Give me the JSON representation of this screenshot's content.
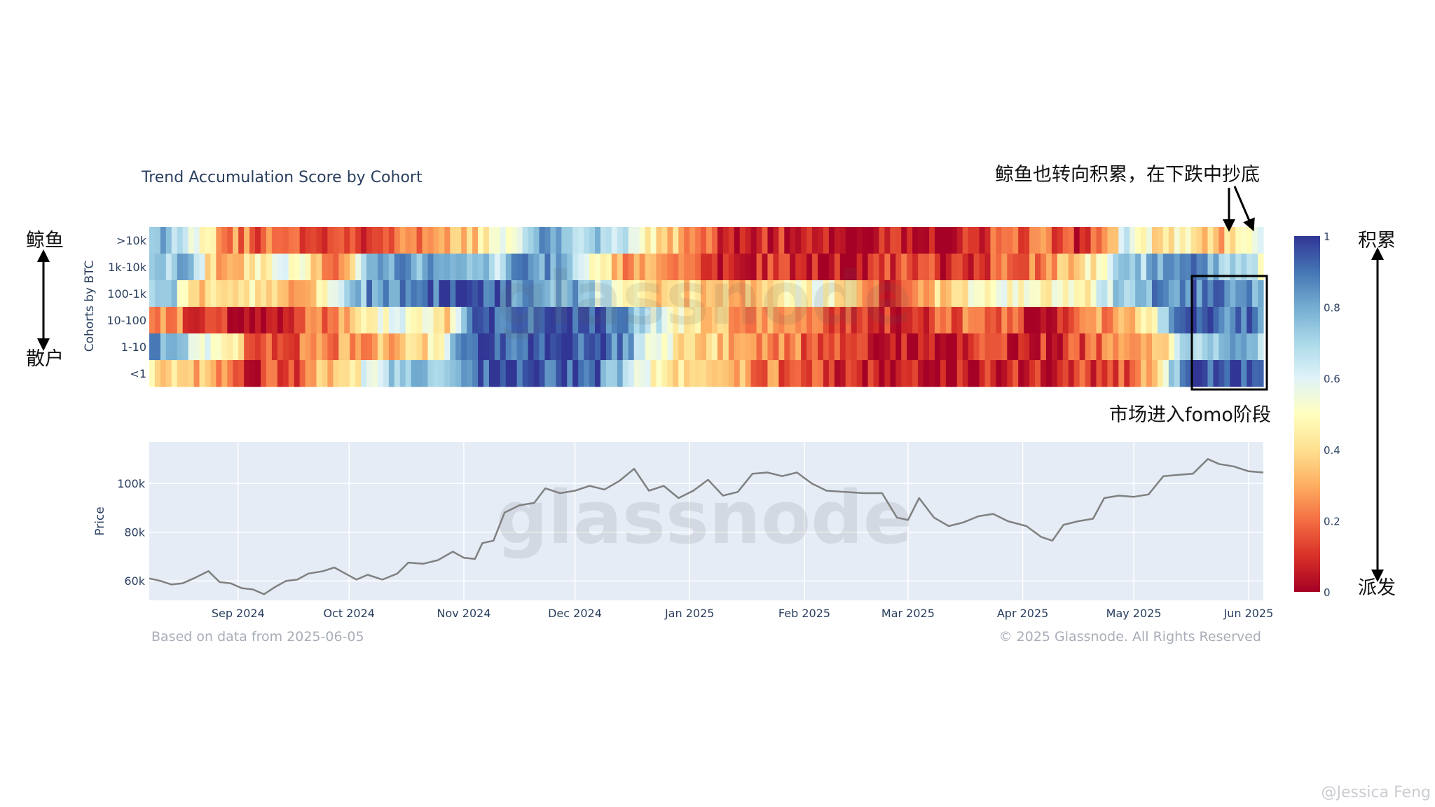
{
  "chart_data": {
    "type": "heatmap",
    "title": "Trend Accumulation Score by Cohort",
    "heatmap": {
      "ylabel": "Cohorts by BTC",
      "cohorts": [
        ">10k",
        "1k-10k",
        "100-1k",
        "10-100",
        "1-10",
        "<1"
      ],
      "x_range": [
        "2024-08-08",
        "2025-06-05"
      ],
      "segments": {
        ">10k": [
          [
            0,
            0.85
          ],
          [
            0.025,
            0.7
          ],
          [
            0.05,
            0.55
          ],
          [
            0.065,
            0.3
          ],
          [
            0.09,
            0.2
          ],
          [
            0.18,
            0.15
          ],
          [
            0.25,
            0.2
          ],
          [
            0.33,
            0.55
          ],
          [
            0.355,
            0.85
          ],
          [
            0.43,
            0.6
          ],
          [
            0.49,
            0.25
          ],
          [
            0.52,
            0.05
          ],
          [
            0.55,
            0.1
          ],
          [
            0.61,
            0.02
          ],
          [
            0.66,
            0.08
          ],
          [
            0.71,
            0.05
          ],
          [
            0.76,
            0.15
          ],
          [
            0.8,
            0.2
          ],
          [
            0.83,
            0.1
          ],
          [
            0.85,
            0.2
          ],
          [
            0.86,
            0.35
          ],
          [
            0.88,
            0.6
          ],
          [
            0.91,
            0.35
          ],
          [
            0.93,
            0.5
          ],
          [
            0.96,
            0.3
          ],
          [
            0.985,
            0.45
          ],
          [
            0.99,
            0.6
          ],
          [
            1,
            0.6
          ]
        ],
        "1k-10k": [
          [
            0,
            0.65
          ],
          [
            0.03,
            0.8
          ],
          [
            0.06,
            0.3
          ],
          [
            0.13,
            0.55
          ],
          [
            0.17,
            0.15
          ],
          [
            0.2,
            0.85
          ],
          [
            0.28,
            0.8
          ],
          [
            0.31,
            0.65
          ],
          [
            0.34,
            0.9
          ],
          [
            0.38,
            0.75
          ],
          [
            0.42,
            0.3
          ],
          [
            0.49,
            0.2
          ],
          [
            0.5,
            0.05
          ],
          [
            0.57,
            0.1
          ],
          [
            0.63,
            0.02
          ],
          [
            0.67,
            0.12
          ],
          [
            0.72,
            0.1
          ],
          [
            0.8,
            0.2
          ],
          [
            0.83,
            0.35
          ],
          [
            0.87,
            0.65
          ],
          [
            0.91,
            0.8
          ],
          [
            0.95,
            0.85
          ],
          [
            0.985,
            0.6
          ],
          [
            1,
            0.6
          ]
        ],
        "100-1k": [
          [
            0,
            0.65
          ],
          [
            0.02,
            0.8
          ],
          [
            0.04,
            0.3
          ],
          [
            0.09,
            0.5
          ],
          [
            0.13,
            0.2
          ],
          [
            0.2,
            0.85
          ],
          [
            0.28,
            0.95
          ],
          [
            0.38,
            0.8
          ],
          [
            0.42,
            0.55
          ],
          [
            0.46,
            0.4
          ],
          [
            0.53,
            0.3
          ],
          [
            0.61,
            0.55
          ],
          [
            0.66,
            0.1
          ],
          [
            0.7,
            0.35
          ],
          [
            0.72,
            0.4
          ],
          [
            0.78,
            0.55
          ],
          [
            0.84,
            0.45
          ],
          [
            0.86,
            0.6
          ],
          [
            0.88,
            0.8
          ],
          [
            0.93,
            0.9
          ],
          [
            0.96,
            0.85
          ],
          [
            1,
            0.85
          ]
        ],
        "10-100": [
          [
            0,
            0.3
          ],
          [
            0.06,
            0.1
          ],
          [
            0.08,
            0.05
          ],
          [
            0.16,
            0.2
          ],
          [
            0.22,
            0.55
          ],
          [
            0.27,
            0.4
          ],
          [
            0.29,
            0.95
          ],
          [
            0.4,
            0.95
          ],
          [
            0.43,
            0.85
          ],
          [
            0.47,
            0.5
          ],
          [
            0.52,
            0.3
          ],
          [
            0.58,
            0.2
          ],
          [
            0.66,
            0.1
          ],
          [
            0.75,
            0.2
          ],
          [
            0.8,
            0.08
          ],
          [
            0.85,
            0.25
          ],
          [
            0.89,
            0.4
          ],
          [
            0.93,
            0.95
          ],
          [
            0.96,
            0.9
          ],
          [
            1,
            0.9
          ]
        ],
        "1-10": [
          [
            0,
            0.85
          ],
          [
            0.04,
            0.6
          ],
          [
            0.08,
            0.4
          ],
          [
            0.09,
            0.1
          ],
          [
            0.2,
            0.3
          ],
          [
            0.26,
            0.45
          ],
          [
            0.27,
            0.7
          ],
          [
            0.3,
            0.95
          ],
          [
            0.4,
            0.95
          ],
          [
            0.43,
            0.8
          ],
          [
            0.45,
            0.6
          ],
          [
            0.47,
            0.45
          ],
          [
            0.52,
            0.35
          ],
          [
            0.56,
            0.25
          ],
          [
            0.62,
            0.12
          ],
          [
            0.66,
            0.05
          ],
          [
            0.75,
            0.1
          ],
          [
            0.8,
            0.08
          ],
          [
            0.83,
            0.15
          ],
          [
            0.9,
            0.25
          ],
          [
            0.93,
            0.7
          ],
          [
            0.97,
            0.75
          ],
          [
            1,
            0.75
          ]
        ],
        "<1": [
          [
            0,
            0.45
          ],
          [
            0.03,
            0.35
          ],
          [
            0.07,
            0.3
          ],
          [
            0.09,
            0.1
          ],
          [
            0.13,
            0.15
          ],
          [
            0.17,
            0.4
          ],
          [
            0.22,
            0.7
          ],
          [
            0.24,
            0.85
          ],
          [
            0.27,
            0.7
          ],
          [
            0.29,
            0.95
          ],
          [
            0.4,
            0.95
          ],
          [
            0.42,
            0.75
          ],
          [
            0.45,
            0.55
          ],
          [
            0.48,
            0.4
          ],
          [
            0.52,
            0.3
          ],
          [
            0.57,
            0.2
          ],
          [
            0.63,
            0.1
          ],
          [
            0.66,
            0.02
          ],
          [
            0.74,
            0.05
          ],
          [
            0.78,
            0.08
          ],
          [
            0.83,
            0.1
          ],
          [
            0.89,
            0.2
          ],
          [
            0.93,
            0.95
          ],
          [
            0.97,
            0.95
          ],
          [
            1,
            0.95
          ]
        ]
      }
    },
    "price": {
      "ylabel": "Price",
      "ylim": [
        52000,
        117000
      ],
      "yticks": [
        60000,
        80000,
        100000
      ],
      "ytick_labels": [
        "60k",
        "80k",
        "100k"
      ],
      "xticks": [
        "Sep 2024",
        "Oct 2024",
        "Nov 2024",
        "Dec 2024",
        "Jan 2025",
        "Feb 2025",
        "Mar 2025",
        "Apr 2025",
        "May 2025",
        "Jun 2025"
      ],
      "xtick_dates": [
        "2024-09-01",
        "2024-10-01",
        "2024-11-01",
        "2024-12-01",
        "2025-01-01",
        "2025-02-01",
        "2025-03-01",
        "2025-04-01",
        "2025-05-01",
        "2025-06-01"
      ],
      "x_range": [
        "2024-08-08",
        "2025-06-05"
      ],
      "series": [
        {
          "dates": [
            "2024-08-08",
            "2024-08-11",
            "2024-08-14",
            "2024-08-17",
            "2024-08-20",
            "2024-08-24",
            "2024-08-27",
            "2024-08-30",
            "2024-09-02",
            "2024-09-05",
            "2024-09-08",
            "2024-09-11",
            "2024-09-14",
            "2024-09-17",
            "2024-09-20",
            "2024-09-24",
            "2024-09-27",
            "2024-09-30",
            "2024-10-03",
            "2024-10-06",
            "2024-10-10",
            "2024-10-14",
            "2024-10-17",
            "2024-10-21",
            "2024-10-25",
            "2024-10-29",
            "2024-11-01",
            "2024-11-04",
            "2024-11-06",
            "2024-11-09",
            "2024-11-12",
            "2024-11-16",
            "2024-11-20",
            "2024-11-23",
            "2024-11-27",
            "2024-12-01",
            "2024-12-05",
            "2024-12-09",
            "2024-12-13",
            "2024-12-17",
            "2024-12-21",
            "2024-12-25",
            "2024-12-29",
            "2025-01-02",
            "2025-01-06",
            "2025-01-10",
            "2025-01-14",
            "2025-01-18",
            "2025-01-22",
            "2025-01-26",
            "2025-01-30",
            "2025-02-03",
            "2025-02-07",
            "2025-02-12",
            "2025-02-17",
            "2025-02-22",
            "2025-02-26",
            "2025-03-01",
            "2025-03-04",
            "2025-03-08",
            "2025-03-12",
            "2025-03-16",
            "2025-03-20",
            "2025-03-24",
            "2025-03-28",
            "2025-04-02",
            "2025-04-06",
            "2025-04-09",
            "2025-04-12",
            "2025-04-16",
            "2025-04-20",
            "2025-04-23",
            "2025-04-27",
            "2025-05-01",
            "2025-05-05",
            "2025-05-09",
            "2025-05-13",
            "2025-05-17",
            "2025-05-21",
            "2025-05-24",
            "2025-05-28",
            "2025-06-01",
            "2025-06-05"
          ],
          "values": [
            61000,
            60000,
            58500,
            59000,
            61000,
            64000,
            59500,
            59000,
            57000,
            56500,
            54500,
            57500,
            60000,
            60500,
            63000,
            64000,
            65500,
            63000,
            60500,
            62500,
            60500,
            63000,
            67500,
            67000,
            68500,
            72000,
            69500,
            69000,
            75500,
            76500,
            88000,
            91000,
            92000,
            98000,
            96000,
            97000,
            99000,
            97500,
            101000,
            106000,
            97000,
            99000,
            94000,
            97000,
            101500,
            95000,
            96500,
            104000,
            104500,
            103000,
            104500,
            100000,
            97000,
            96500,
            96000,
            96000,
            86000,
            85000,
            94000,
            86000,
            82500,
            84000,
            86500,
            87500,
            84500,
            82500,
            78000,
            76500,
            83000,
            84500,
            85500,
            94000,
            95000,
            94500,
            95500,
            103000,
            103500,
            104000,
            110000,
            108000,
            107000,
            105000,
            104500
          ]
        }
      ]
    },
    "colorbar": {
      "ticks": [
        0,
        0.2,
        0.4,
        0.6,
        0.8,
        1
      ],
      "labels": [
        "0",
        "0.2",
        "0.4",
        "0.6",
        "0.8",
        "1"
      ]
    },
    "footer_left": "Based on data from 2025-06-05",
    "footer_right": "© 2025 Glassnode. All Rights Reserved",
    "watermark": "glassnode"
  },
  "annotations": {
    "whales": "鲸鱼",
    "retail": "散户",
    "accumulate": "积累",
    "distribute": "派发",
    "whales_note": "鲸鱼也转向积累，在下跌中抄底",
    "fomo_note": "市场进入fomo阶段",
    "credit": "@Jessica Feng"
  },
  "colors": {
    "scale": [
      "#a50026",
      "#d73027",
      "#f46d43",
      "#fdae61",
      "#fee090",
      "#ffffbf",
      "#e0f3f8",
      "#abd9e9",
      "#74add1",
      "#4575b4",
      "#313695"
    ],
    "plot_bg": "#e5ecf6",
    "price_line": "#808080"
  }
}
